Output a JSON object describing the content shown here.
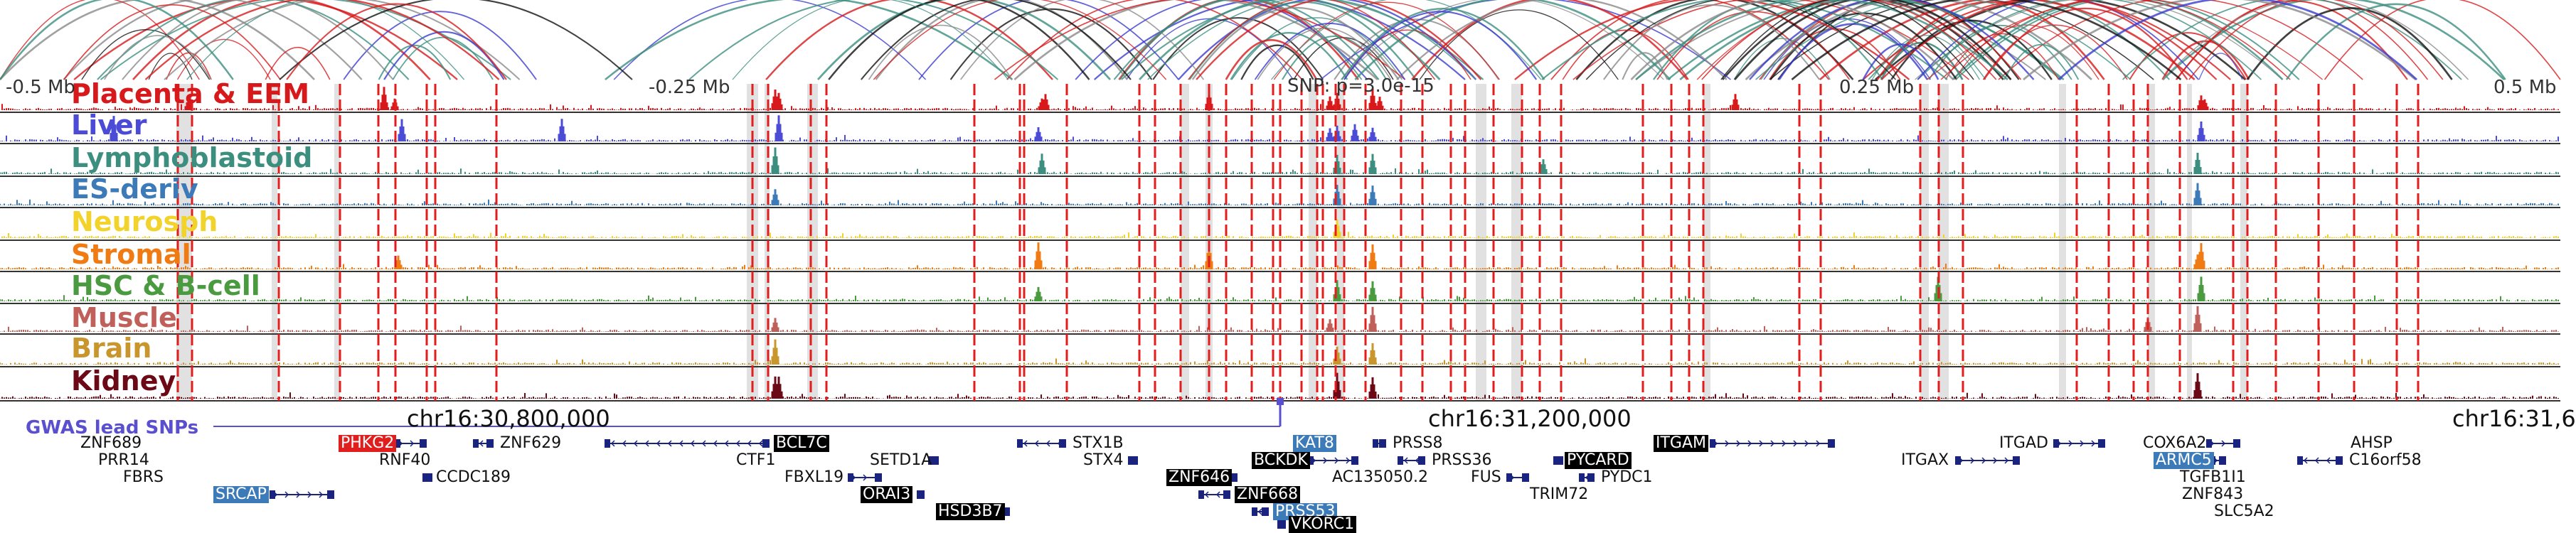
{
  "tracks": [
    {
      "name": "Placenta & EEM",
      "color": "#d7191c"
    },
    {
      "name": "Liver",
      "color": "#4b4bd6"
    },
    {
      "name": "Lymphoblastoid",
      "color": "#3c8f7f"
    },
    {
      "name": "ES-deriv",
      "color": "#3d7ab8"
    },
    {
      "name": "Neurosph",
      "color": "#f2d32b"
    },
    {
      "name": "Stromal",
      "color": "#f07b12"
    },
    {
      "name": "HSC & B-cell",
      "color": "#4a9a3f"
    },
    {
      "name": "Muscle",
      "color": "#c0605a"
    },
    {
      "name": "Brain",
      "color": "#c8962c"
    },
    {
      "name": "Kidney",
      "color": "#6b0a16"
    }
  ],
  "axis_labels": {
    "left": "-0.5 Mb",
    "mid_left": "-0.25 Mb",
    "snp": "SNP: p=3.0e-15",
    "mid_right": "0.25 Mb",
    "right": "0.5 Mb"
  },
  "coordinates": [
    "chr16:30,800,000",
    "chr16:31,200,000",
    "chr16:31,6"
  ],
  "gwas_label": "GWAS lead SNPs",
  "genes": [
    {
      "name": "ZNF689",
      "style": "plain"
    },
    {
      "name": "PRR14",
      "style": "plain"
    },
    {
      "name": "FBRS",
      "style": "plain"
    },
    {
      "name": "SRCAP",
      "style": "blue"
    },
    {
      "name": "PHKG2",
      "style": "red"
    },
    {
      "name": "RNF40",
      "style": "plain"
    },
    {
      "name": "ZNF629",
      "style": "plain"
    },
    {
      "name": "CCDC189",
      "style": "plain"
    },
    {
      "name": "BCL7C",
      "style": "black"
    },
    {
      "name": "CTF1",
      "style": "plain"
    },
    {
      "name": "SETD1A",
      "style": "plain"
    },
    {
      "name": "FBXL19",
      "style": "plain"
    },
    {
      "name": "ORAI3",
      "style": "black"
    },
    {
      "name": "HSD3B7",
      "style": "black"
    },
    {
      "name": "STX1B",
      "style": "plain"
    },
    {
      "name": "STX4",
      "style": "plain"
    },
    {
      "name": "ZNF646",
      "style": "black"
    },
    {
      "name": "ZNF668",
      "style": "black"
    },
    {
      "name": "KAT8",
      "style": "blue"
    },
    {
      "name": "BCKDK",
      "style": "black"
    },
    {
      "name": "PRSS53",
      "style": "blue"
    },
    {
      "name": "VKORC1",
      "style": "black"
    },
    {
      "name": "PRSS8",
      "style": "plain"
    },
    {
      "name": "PRSS36",
      "style": "plain"
    },
    {
      "name": "AC135050.2",
      "style": "plain"
    },
    {
      "name": "FUS",
      "style": "plain"
    },
    {
      "name": "PYCARD",
      "style": "black"
    },
    {
      "name": "PYDC1",
      "style": "plain"
    },
    {
      "name": "TRIM72",
      "style": "plain"
    },
    {
      "name": "ITGAM",
      "style": "black"
    },
    {
      "name": "ITGAX",
      "style": "plain"
    },
    {
      "name": "ITGAD",
      "style": "plain"
    },
    {
      "name": "COX6A2",
      "style": "plain"
    },
    {
      "name": "ARMC5",
      "style": "blue"
    },
    {
      "name": "TGFB1I1",
      "style": "plain"
    },
    {
      "name": "ZNF843",
      "style": "plain"
    },
    {
      "name": "SLC5A2",
      "style": "plain"
    },
    {
      "name": "AHSP",
      "style": "plain"
    },
    {
      "name": "C16orf58",
      "style": "plain"
    }
  ],
  "colors": {
    "red_line": "#e01e1e",
    "grey_band": "#d9d9d9",
    "arc_red": "#d7191c",
    "arc_blue": "#3b3bcf",
    "arc_teal": "#3c8f7f",
    "arc_grey": "#8a8a8a",
    "arc_black": "#111111",
    "gwas_line": "#5a4fcf"
  }
}
